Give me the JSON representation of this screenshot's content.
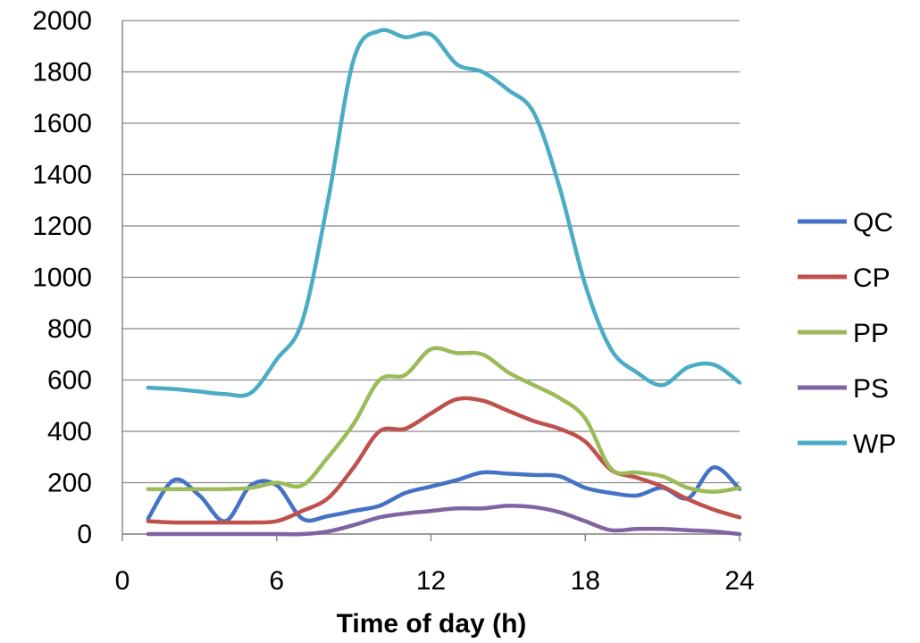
{
  "chart_data": {
    "type": "line",
    "title": "",
    "xlabel": "Time of day (h)",
    "ylabel": "",
    "xlim": [
      0,
      24
    ],
    "ylim": [
      0,
      2000
    ],
    "xticks": [
      0,
      6,
      12,
      18,
      24
    ],
    "yticks": [
      0,
      200,
      400,
      600,
      800,
      1000,
      1200,
      1400,
      1600,
      1800,
      2000
    ],
    "grid": "horizontal",
    "legend_position": "right",
    "x": [
      1,
      2,
      3,
      4,
      5,
      6,
      7,
      8,
      9,
      10,
      11,
      12,
      13,
      14,
      15,
      16,
      17,
      18,
      19,
      20,
      21,
      22,
      23,
      24
    ],
    "series": [
      {
        "name": "QC",
        "color": "#4472C4",
        "values": [
          60,
          210,
          150,
          50,
          190,
          190,
          60,
          70,
          90,
          110,
          160,
          185,
          210,
          240,
          235,
          230,
          225,
          180,
          160,
          150,
          180,
          140,
          260,
          175
        ]
      },
      {
        "name": "CP",
        "color": "#C0504D",
        "values": [
          50,
          45,
          45,
          45,
          45,
          50,
          90,
          140,
          260,
          400,
          410,
          470,
          525,
          520,
          480,
          440,
          410,
          360,
          250,
          220,
          185,
          135,
          95,
          65
        ]
      },
      {
        "name": "PP",
        "color": "#9BBB59",
        "values": [
          175,
          175,
          175,
          175,
          180,
          200,
          190,
          300,
          430,
          600,
          620,
          720,
          705,
          700,
          630,
          580,
          530,
          450,
          255,
          240,
          225,
          180,
          165,
          180
        ]
      },
      {
        "name": "PS",
        "color": "#8064A2",
        "values": [
          0,
          0,
          0,
          0,
          0,
          0,
          0,
          10,
          35,
          65,
          80,
          90,
          100,
          100,
          110,
          105,
          85,
          50,
          15,
          20,
          20,
          15,
          10,
          0
        ]
      },
      {
        "name": "WP",
        "color": "#4BACC6",
        "values": [
          570,
          565,
          555,
          545,
          550,
          680,
          830,
          1300,
          1850,
          1960,
          1935,
          1945,
          1830,
          1800,
          1730,
          1640,
          1350,
          970,
          720,
          630,
          580,
          650,
          660,
          590
        ]
      }
    ]
  }
}
